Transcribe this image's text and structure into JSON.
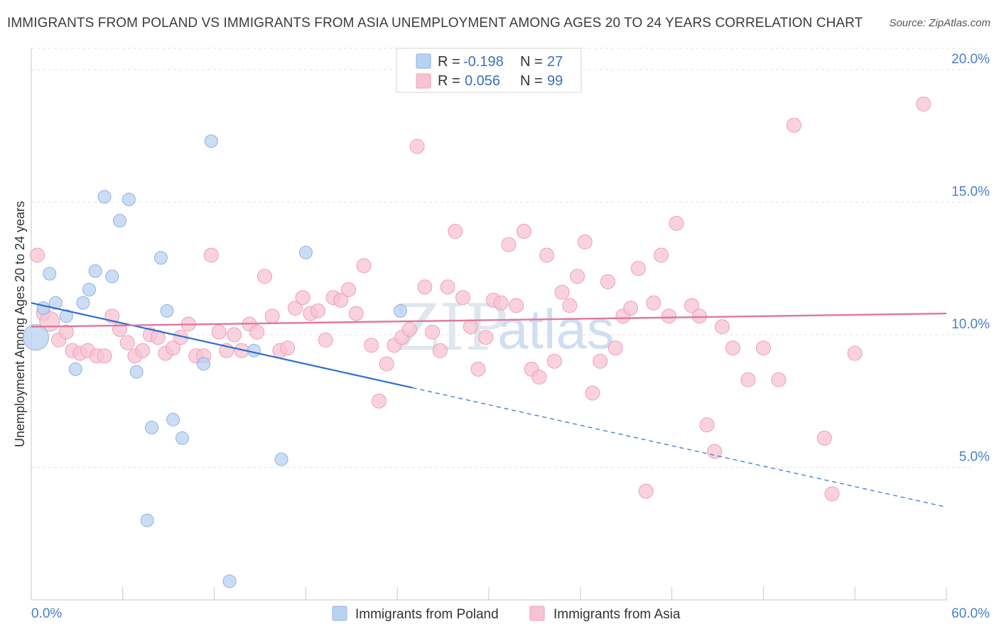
{
  "header": {
    "title": "IMMIGRANTS FROM POLAND VS IMMIGRANTS FROM ASIA UNEMPLOYMENT AMONG AGES 20 TO 24 YEARS CORRELATION CHART",
    "source": "Source: ZipAtlas.com"
  },
  "watermark": {
    "part1": "ZIP",
    "part2": "atlas"
  },
  "legend": {
    "rows": [
      {
        "r_label": "R =",
        "r_value": "-0.198",
        "n_label": "N =",
        "n_value": "27"
      },
      {
        "r_label": "R =",
        "r_value": "0.056",
        "n_label": "N =",
        "n_value": "99"
      }
    ]
  },
  "colors": {
    "poland_fill": "#b8d2f2",
    "poland_stroke": "#8fb3e0",
    "poland_line": "#2d6fcf",
    "asia_fill": "#f7c3d3",
    "asia_stroke": "#eda0b8",
    "asia_line": "#e2779c",
    "tick_label": "#4a7fc8",
    "grid": "#e3e3e3"
  },
  "chart_data": {
    "type": "scatter",
    "title": "IMMIGRANTS FROM POLAND VS IMMIGRANTS FROM ASIA UNEMPLOYMENT AMONG AGES 20 TO 24 YEARS CORRELATION CHART",
    "xlabel": "",
    "ylabel": "Unemployment Among Ages 20 to 24 years",
    "xlim": [
      0,
      60
    ],
    "ylim": [
      0,
      20.8
    ],
    "x_tick_labels": [
      "0.0%",
      "60.0%"
    ],
    "y_ticks": [
      5,
      10,
      15,
      20
    ],
    "y_tick_labels": [
      "5.0%",
      "10.0%",
      "15.0%",
      "20.0%"
    ],
    "grid": "horizontal dashed",
    "legend_position": "top-center",
    "series": [
      {
        "name": "Immigrants from Poland",
        "r": -0.198,
        "n": 27,
        "trend": {
          "x0": 0,
          "y0": 11.2,
          "x1": 25,
          "y1": 8.0,
          "extend_to_x": 60,
          "extend_to_y": 3.5
        },
        "points": [
          [
            0.3,
            9.9,
            18
          ],
          [
            0.8,
            11.0,
            9
          ],
          [
            1.2,
            12.3,
            9
          ],
          [
            1.6,
            11.2,
            9
          ],
          [
            2.3,
            10.7,
            9
          ],
          [
            2.9,
            8.7,
            9
          ],
          [
            3.4,
            11.2,
            9
          ],
          [
            3.8,
            11.7,
            9
          ],
          [
            4.2,
            12.4,
            9
          ],
          [
            4.8,
            15.2,
            9
          ],
          [
            5.3,
            12.2,
            9
          ],
          [
            5.8,
            14.3,
            9
          ],
          [
            6.4,
            15.1,
            9
          ],
          [
            6.9,
            8.6,
            9
          ],
          [
            7.6,
            3.0,
            9
          ],
          [
            7.9,
            6.5,
            9
          ],
          [
            8.5,
            12.9,
            9
          ],
          [
            8.9,
            10.9,
            9
          ],
          [
            9.3,
            6.8,
            9
          ],
          [
            9.9,
            6.1,
            9
          ],
          [
            11.3,
            8.9,
            9
          ],
          [
            11.8,
            17.3,
            9
          ],
          [
            13.0,
            0.7,
            9
          ],
          [
            14.6,
            9.4,
            9
          ],
          [
            16.4,
            5.3,
            9
          ],
          [
            18.0,
            13.1,
            9
          ],
          [
            24.2,
            10.9,
            9
          ]
        ]
      },
      {
        "name": "Immigrants from Asia",
        "r": 0.056,
        "n": 99,
        "trend": {
          "x0": 0,
          "y0": 10.3,
          "x1": 60,
          "y1": 10.8
        },
        "points": [
          [
            0.4,
            13.0,
            10
          ],
          [
            0.8,
            10.8,
            10
          ],
          [
            1.2,
            10.5,
            14
          ],
          [
            1.8,
            9.8,
            10
          ],
          [
            2.3,
            10.1,
            10
          ],
          [
            2.7,
            9.4,
            10
          ],
          [
            3.2,
            9.3,
            10
          ],
          [
            3.7,
            9.4,
            10
          ],
          [
            4.3,
            9.2,
            10
          ],
          [
            4.8,
            9.2,
            10
          ],
          [
            5.3,
            10.7,
            10
          ],
          [
            5.8,
            10.2,
            10
          ],
          [
            6.3,
            9.7,
            10
          ],
          [
            6.8,
            9.2,
            10
          ],
          [
            7.3,
            9.4,
            10
          ],
          [
            7.8,
            10.0,
            10
          ],
          [
            8.3,
            9.9,
            10
          ],
          [
            8.8,
            9.3,
            10
          ],
          [
            9.3,
            9.5,
            10
          ],
          [
            9.8,
            9.9,
            10
          ],
          [
            10.3,
            10.4,
            10
          ],
          [
            10.8,
            9.2,
            10
          ],
          [
            11.3,
            9.2,
            10
          ],
          [
            11.8,
            13.0,
            10
          ],
          [
            12.3,
            10.1,
            10
          ],
          [
            12.8,
            9.4,
            10
          ],
          [
            13.3,
            10.0,
            10
          ],
          [
            13.8,
            9.4,
            10
          ],
          [
            14.3,
            10.4,
            10
          ],
          [
            14.8,
            10.1,
            10
          ],
          [
            15.3,
            12.2,
            10
          ],
          [
            15.8,
            10.7,
            10
          ],
          [
            16.3,
            9.4,
            10
          ],
          [
            16.8,
            9.5,
            10
          ],
          [
            17.3,
            11.0,
            10
          ],
          [
            17.8,
            11.4,
            10
          ],
          [
            18.3,
            10.8,
            10
          ],
          [
            18.8,
            10.9,
            10
          ],
          [
            19.3,
            9.8,
            10
          ],
          [
            19.8,
            11.4,
            10
          ],
          [
            20.3,
            11.3,
            10
          ],
          [
            20.8,
            11.7,
            10
          ],
          [
            21.3,
            10.8,
            10
          ],
          [
            21.8,
            12.6,
            10
          ],
          [
            22.3,
            9.6,
            10
          ],
          [
            22.8,
            7.5,
            10
          ],
          [
            23.3,
            8.9,
            10
          ],
          [
            23.8,
            9.6,
            10
          ],
          [
            24.3,
            9.9,
            10
          ],
          [
            24.8,
            10.2,
            10
          ],
          [
            25.3,
            17.1,
            10
          ],
          [
            25.8,
            11.8,
            10
          ],
          [
            26.3,
            10.1,
            10
          ],
          [
            26.8,
            9.4,
            10
          ],
          [
            27.3,
            11.8,
            10
          ],
          [
            27.8,
            13.9,
            10
          ],
          [
            28.3,
            11.4,
            10
          ],
          [
            28.8,
            10.3,
            10
          ],
          [
            29.3,
            8.7,
            10
          ],
          [
            29.8,
            9.9,
            10
          ],
          [
            30.3,
            11.3,
            10
          ],
          [
            30.8,
            11.2,
            10
          ],
          [
            31.3,
            13.4,
            10
          ],
          [
            31.8,
            11.1,
            10
          ],
          [
            32.3,
            13.9,
            10
          ],
          [
            32.8,
            8.7,
            10
          ],
          [
            33.3,
            8.4,
            10
          ],
          [
            33.8,
            13.0,
            10
          ],
          [
            34.3,
            9.0,
            10
          ],
          [
            34.8,
            11.6,
            10
          ],
          [
            35.3,
            11.1,
            10
          ],
          [
            35.8,
            12.2,
            10
          ],
          [
            36.3,
            13.5,
            10
          ],
          [
            36.8,
            7.8,
            10
          ],
          [
            37.3,
            9.0,
            10
          ],
          [
            37.8,
            12.0,
            10
          ],
          [
            38.3,
            9.5,
            10
          ],
          [
            38.8,
            10.7,
            10
          ],
          [
            39.3,
            11.0,
            10
          ],
          [
            39.8,
            12.5,
            10
          ],
          [
            40.3,
            4.1,
            10
          ],
          [
            40.8,
            11.2,
            10
          ],
          [
            41.3,
            13.0,
            10
          ],
          [
            41.8,
            10.7,
            10
          ],
          [
            42.3,
            14.2,
            10
          ],
          [
            43.3,
            11.1,
            10
          ],
          [
            43.8,
            10.7,
            10
          ],
          [
            44.3,
            6.6,
            10
          ],
          [
            44.8,
            5.6,
            10
          ],
          [
            45.3,
            10.3,
            10
          ],
          [
            46.0,
            9.5,
            10
          ],
          [
            47.0,
            8.3,
            10
          ],
          [
            48.0,
            9.5,
            10
          ],
          [
            49.0,
            8.3,
            10
          ],
          [
            50.0,
            17.9,
            10
          ],
          [
            52.0,
            6.1,
            10
          ],
          [
            52.5,
            4.0,
            10
          ],
          [
            54.0,
            9.3,
            10
          ],
          [
            58.5,
            18.7,
            10
          ]
        ]
      }
    ]
  },
  "bottom_legend": {
    "items": [
      {
        "label": "Immigrants from Poland"
      },
      {
        "label": "Immigrants from Asia"
      }
    ]
  }
}
